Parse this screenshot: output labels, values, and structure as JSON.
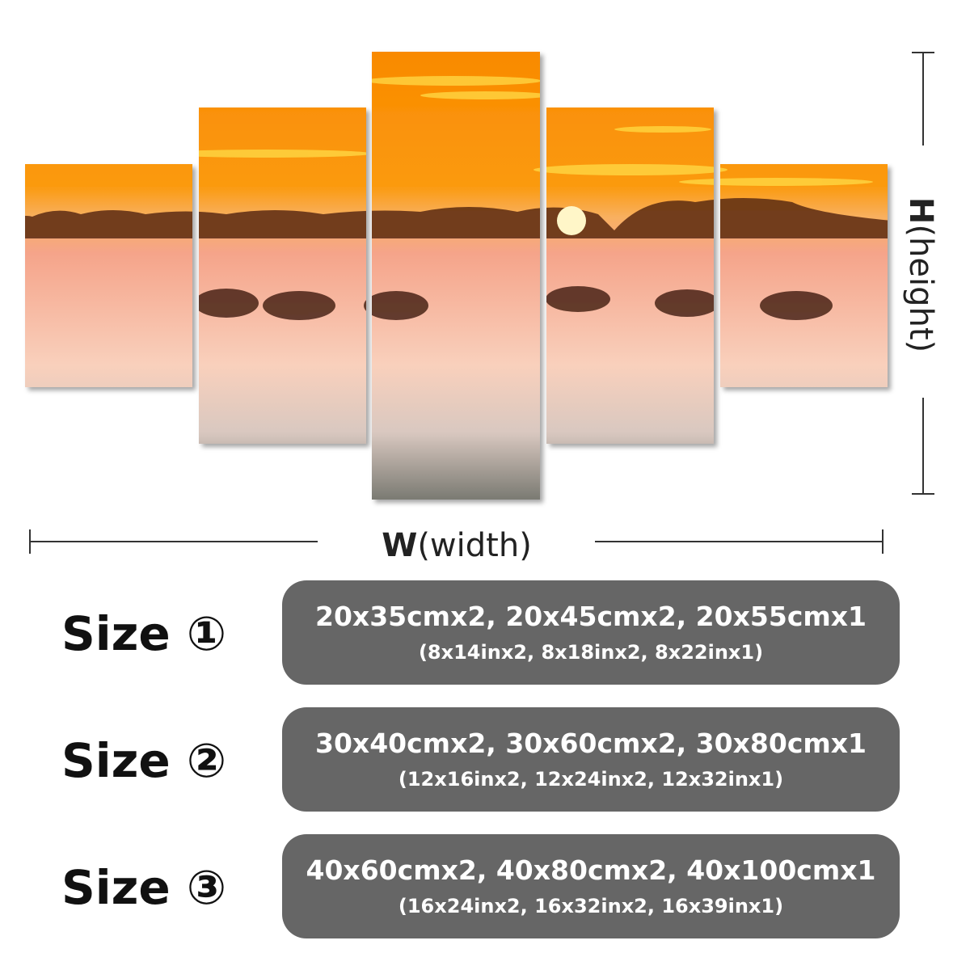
{
  "height_label": {
    "letter": "H",
    "word": "(height)"
  },
  "width_label": {
    "letter": "W",
    "word": "(width)"
  },
  "sizes": [
    {
      "label": "Size ①",
      "cm": "20x35cmx2, 20x45cmx2, 20x55cmx1",
      "inch": "(8x14inx2, 8x18inx2, 8x22inx1)"
    },
    {
      "label": "Size ②",
      "cm": "30x40cmx2, 30x60cmx2, 30x80cmx1",
      "inch": "(12x16inx2, 12x24inx2, 12x32inx1)"
    },
    {
      "label": "Size ③",
      "cm": "40x60cmx2, 40x80cmx2, 40x100cmx1",
      "inch": "(16x24inx2, 16x32inx2, 16x39inx1)"
    }
  ]
}
